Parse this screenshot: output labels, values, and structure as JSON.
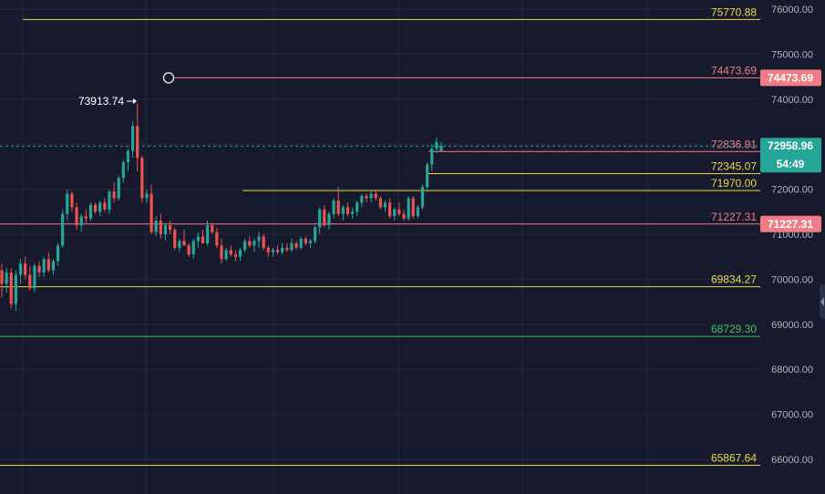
{
  "chart_data": {
    "type": "candlestick",
    "ylim": [
      65700,
      76200
    ],
    "y_ticks": [
      "76000.00",
      "75000.00",
      "74000.00",
      "73000.00",
      "72000.00",
      "71000.00",
      "70000.00",
      "69000.00",
      "68000.00",
      "67000.00",
      "66000.00"
    ],
    "candles": [
      [
        70200,
        70350,
        69600,
        69900
      ],
      [
        69900,
        70250,
        69700,
        70150
      ],
      [
        70150,
        70250,
        69350,
        69450
      ],
      [
        69450,
        70200,
        69300,
        70100
      ],
      [
        70100,
        70450,
        69900,
        70350
      ],
      [
        70350,
        70500,
        70000,
        70100
      ],
      [
        70100,
        70300,
        69750,
        69800
      ],
      [
        69800,
        70350,
        69700,
        70300
      ],
      [
        70300,
        70400,
        70050,
        70150
      ],
      [
        70150,
        70500,
        70050,
        70450
      ],
      [
        70450,
        70600,
        70150,
        70200
      ],
      [
        70200,
        70450,
        70100,
        70400
      ],
      [
        70400,
        70800,
        70300,
        70750
      ],
      [
        70750,
        71550,
        70700,
        71450
      ],
      [
        71450,
        72000,
        71300,
        71900
      ],
      [
        71900,
        71950,
        71500,
        71600
      ],
      [
        71600,
        71700,
        71100,
        71200
      ],
      [
        71200,
        71450,
        71050,
        71400
      ],
      [
        71400,
        71550,
        71250,
        71350
      ],
      [
        71350,
        71700,
        71300,
        71650
      ],
      [
        71650,
        71700,
        71450,
        71500
      ],
      [
        71500,
        71750,
        71400,
        71700
      ],
      [
        71700,
        71800,
        71500,
        71550
      ],
      [
        71550,
        72000,
        71450,
        71950
      ],
      [
        71950,
        72150,
        71700,
        71800
      ],
      [
        71800,
        72300,
        71750,
        72250
      ],
      [
        72250,
        72650,
        72150,
        72600
      ],
      [
        72600,
        72900,
        72400,
        72850
      ],
      [
        72850,
        73500,
        72700,
        73400
      ],
      [
        73400,
        73900,
        72400,
        72700
      ],
      [
        72700,
        72750,
        71700,
        71800
      ],
      [
        71800,
        72000,
        71700,
        71900
      ],
      [
        71900,
        72100,
        71000,
        71050
      ],
      [
        71050,
        71400,
        70950,
        71300
      ],
      [
        71300,
        71450,
        70900,
        71000
      ],
      [
        71000,
        71250,
        70850,
        71200
      ],
      [
        71200,
        71300,
        71000,
        71100
      ],
      [
        71100,
        71150,
        70650,
        70700
      ],
      [
        70700,
        70900,
        70600,
        70850
      ],
      [
        70850,
        71100,
        70750,
        70750
      ],
      [
        70750,
        70800,
        70500,
        70550
      ],
      [
        70550,
        70900,
        70450,
        70850
      ],
      [
        70850,
        71050,
        70700,
        70950
      ],
      [
        70950,
        71100,
        70800,
        70800
      ],
      [
        70800,
        71300,
        70750,
        71200
      ],
      [
        71200,
        71250,
        71000,
        71050
      ],
      [
        71050,
        71150,
        70700,
        70750
      ],
      [
        70750,
        70900,
        70350,
        70450
      ],
      [
        70450,
        70700,
        70400,
        70650
      ],
      [
        70650,
        70750,
        70500,
        70550
      ],
      [
        70550,
        70650,
        70400,
        70500
      ],
      [
        70500,
        70700,
        70400,
        70650
      ],
      [
        70650,
        70900,
        70600,
        70850
      ],
      [
        70850,
        70950,
        70700,
        70750
      ],
      [
        70750,
        70900,
        70600,
        70850
      ],
      [
        70850,
        71050,
        70700,
        70950
      ],
      [
        70950,
        71000,
        70650,
        70700
      ],
      [
        70700,
        70750,
        70500,
        70600
      ],
      [
        70600,
        70700,
        70500,
        70650
      ],
      [
        70650,
        70750,
        70550,
        70600
      ],
      [
        70600,
        70800,
        70550,
        70700
      ],
      [
        70700,
        70800,
        70600,
        70650
      ],
      [
        70650,
        70900,
        70600,
        70800
      ],
      [
        70800,
        70850,
        70650,
        70700
      ],
      [
        70700,
        70950,
        70650,
        70900
      ],
      [
        70900,
        70950,
        70750,
        70800
      ],
      [
        70800,
        70900,
        70700,
        70850
      ],
      [
        70850,
        71200,
        70800,
        71150
      ],
      [
        71150,
        71600,
        71000,
        71550
      ],
      [
        71550,
        71650,
        71150,
        71200
      ],
      [
        71200,
        71500,
        71100,
        71450
      ],
      [
        71450,
        71800,
        71350,
        71750
      ],
      [
        71750,
        72050,
        71400,
        71450
      ],
      [
        71450,
        71650,
        71300,
        71600
      ],
      [
        71600,
        71700,
        71400,
        71450
      ],
      [
        71450,
        71600,
        71350,
        71500
      ],
      [
        71500,
        71750,
        71400,
        71700
      ],
      [
        71700,
        71900,
        71600,
        71850
      ],
      [
        71850,
        71900,
        71700,
        71800
      ],
      [
        71800,
        71950,
        71700,
        71900
      ],
      [
        71900,
        72000,
        71750,
        71800
      ],
      [
        71800,
        71850,
        71550,
        71600
      ],
      [
        71600,
        71750,
        71500,
        71700
      ],
      [
        71700,
        71800,
        71350,
        71400
      ],
      [
        71400,
        71600,
        71300,
        71550
      ],
      [
        71550,
        71700,
        71400,
        71450
      ],
      [
        71450,
        71550,
        71300,
        71350
      ],
      [
        71350,
        71850,
        71300,
        71800
      ],
      [
        71800,
        71850,
        71350,
        71400
      ],
      [
        71400,
        71650,
        71350,
        71600
      ],
      [
        71600,
        72100,
        71550,
        72050
      ],
      [
        72050,
        72600,
        72000,
        72550
      ],
      [
        72550,
        73000,
        72400,
        72900
      ],
      [
        72900,
        73150,
        72800,
        73050
      ],
      [
        72850,
        73050,
        72850,
        72960
      ]
    ],
    "levels": [
      {
        "value": 75770.88,
        "label": "75770.88",
        "color": "#e6d94a"
      },
      {
        "value": 74473.69,
        "label": "74473.69",
        "color": "#f07d85"
      },
      {
        "value": 72836.91,
        "label": "72836.91",
        "color": "#f07d85"
      },
      {
        "value": 72345.07,
        "label": "72345.07",
        "color": "#e6d94a"
      },
      {
        "value": 71970.0,
        "label": "71970.00",
        "color": "#e6d94a"
      },
      {
        "value": 71227.31,
        "label": "71227.31",
        "color": "#f07d85"
      },
      {
        "value": 69834.27,
        "label": "69834.27",
        "color": "#e6d94a"
      },
      {
        "value": 68729.3,
        "label": "68729.30",
        "color": "#45c25e"
      },
      {
        "value": 65867.64,
        "label": "65867.64",
        "color": "#e6d94a"
      }
    ],
    "high_marker": {
      "label": "73913.74",
      "value": 73913.74,
      "color": "#ffffff"
    },
    "last_price": {
      "value": 72958.96,
      "label": "72958.96",
      "countdown": "54:49",
      "color": "#26a69a"
    },
    "axis_tags": [
      {
        "value": 74473.69,
        "label": "74473.69",
        "color": "#f07d85"
      },
      {
        "value": 71227.31,
        "label": "71227.31",
        "color": "#f07d85"
      }
    ],
    "colors": {
      "background": "#161a2c",
      "grid": "#222739",
      "up": "#26a69a",
      "down": "#ef5350",
      "axis_text": "#b2b5be"
    }
  }
}
